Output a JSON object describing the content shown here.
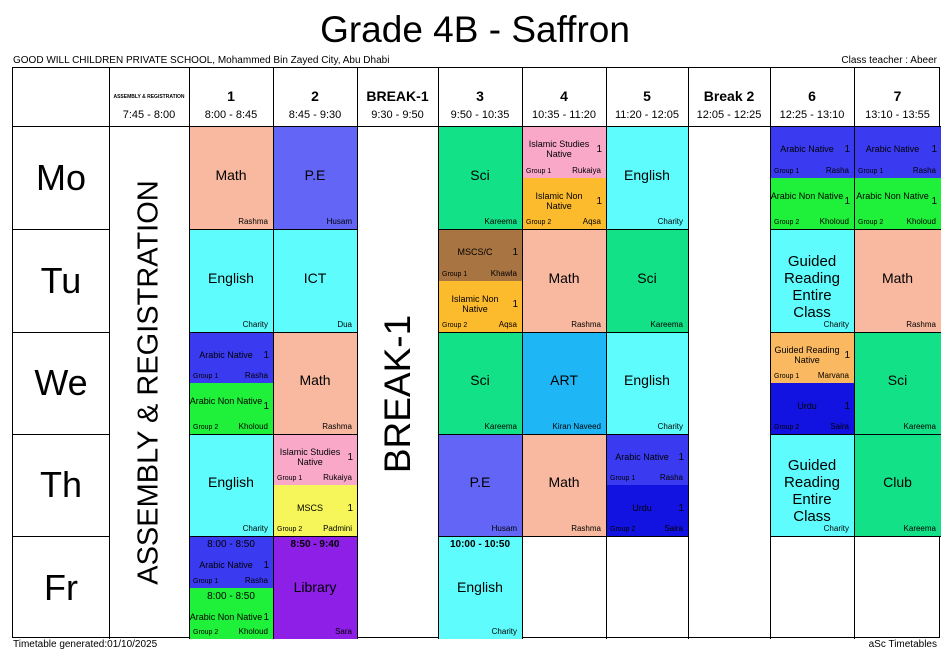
{
  "header": {
    "title": "Grade 4B - Saffron",
    "school": "GOOD WILL CHILDREN PRIVATE SCHOOL, Mohammed Bin Zayed City, Abu Dhabi",
    "teacher": "Class teacher :  Abeer"
  },
  "footer": {
    "generated": "Timetable generated:01/10/2025",
    "brand": "aSc Timetables"
  },
  "periods": [
    {
      "label": "ASSEMBLY & REGISTRATION",
      "time": "7:45 - 8:00"
    },
    {
      "label": "1",
      "time": "8:00 - 8:45"
    },
    {
      "label": "2",
      "time": "8:45 - 9:30"
    },
    {
      "label": "BREAK-1",
      "time": "9:30 - 9:50"
    },
    {
      "label": "3",
      "time": "9:50 - 10:35"
    },
    {
      "label": "4",
      "time": "10:35 - 11:20"
    },
    {
      "label": "5",
      "time": "11:20 - 12:05"
    },
    {
      "label": "Break 2",
      "time": "12:05 - 12:25"
    },
    {
      "label": "6",
      "time": "12:25 - 13:10"
    },
    {
      "label": "7",
      "time": "13:10 - 13:55"
    }
  ],
  "days": [
    "Mo",
    "Tu",
    "We",
    "Th",
    "Fr"
  ],
  "assembly": "ASSEMBLY & REGISTRATION",
  "break1": "BREAK-1",
  "lessons": {
    "mo_p1": {
      "subject": "Math",
      "teacher": "Rashma",
      "color": "#F9B9A0"
    },
    "mo_p2": {
      "subject": "P.E",
      "teacher": "Husam",
      "color": "#6365F6"
    },
    "mo_p3": {
      "subject": "Sci",
      "teacher": "Kareema",
      "color": "#13E187"
    },
    "mo_p4a": {
      "subject": "Islamic Studies Native",
      "count": "1",
      "group": "Group 1",
      "teacher": "Rukaiya",
      "color": "#F9A8C8"
    },
    "mo_p4b": {
      "subject": "Islamic Non Native",
      "count": "1",
      "group": "Group 2",
      "teacher": "Aqsa",
      "color": "#FCBA2D"
    },
    "mo_p5": {
      "subject": "English",
      "teacher": "Charity",
      "color": "#5EFCFC"
    },
    "mo_p6a": {
      "subject": "Arabic Native",
      "count": "1",
      "group": "Group 1",
      "teacher": "Rasha",
      "color": "#3A3AF1"
    },
    "mo_p6b": {
      "subject": "Arabic Non Native",
      "count": "1",
      "group": "Group 2",
      "teacher": "Kholoud",
      "color": "#1FF03A"
    },
    "mo_p7a": {
      "subject": "Arabic Native",
      "count": "1",
      "group": "Group 1",
      "teacher": "Rasha",
      "color": "#3A3AF1"
    },
    "mo_p7b": {
      "subject": "Arabic Non Native",
      "count": "1",
      "group": "Group 2",
      "teacher": "Kholoud",
      "color": "#1FF03A"
    },
    "tu_p1": {
      "subject": "English",
      "teacher": "Charity",
      "color": "#5EFCFC"
    },
    "tu_p2": {
      "subject": "ICT",
      "teacher": "Dua",
      "color": "#5EFCFC"
    },
    "tu_p3a": {
      "subject": "MSCS/C",
      "count": "1",
      "group": "Group 1",
      "teacher": "Khawla",
      "color": "#A87442"
    },
    "tu_p3b": {
      "subject": "Islamic Non Native",
      "count": "1",
      "group": "Group 2",
      "teacher": "Aqsa",
      "color": "#FCBA2D"
    },
    "tu_p4": {
      "subject": "Math",
      "teacher": "Rashma",
      "color": "#F9B9A0"
    },
    "tu_p5": {
      "subject": "Sci",
      "teacher": "Kareema",
      "color": "#13E187"
    },
    "tu_p6": {
      "subject": "Guided Reading Entire Class",
      "teacher": "Charity",
      "color": "#5EFCFC"
    },
    "tu_p7": {
      "subject": "Math",
      "teacher": "Rashma",
      "color": "#F9B9A0"
    },
    "we_p1a": {
      "subject": "Arabic Native",
      "count": "1",
      "group": "Group 1",
      "teacher": "Rasha",
      "color": "#3A3AF1"
    },
    "we_p1b": {
      "subject": "Arabic Non Native",
      "count": "1",
      "group": "Group 2",
      "teacher": "Kholoud",
      "color": "#1FF03A"
    },
    "we_p2": {
      "subject": "Math",
      "teacher": "Rashma",
      "color": "#F9B9A0"
    },
    "we_p3": {
      "subject": "Sci",
      "teacher": "Kareema",
      "color": "#13E187"
    },
    "we_p4": {
      "subject": "ART",
      "teacher": "Kiran Naveed",
      "color": "#1FB6F6"
    },
    "we_p5": {
      "subject": "English",
      "teacher": "Charity",
      "color": "#5EFCFC"
    },
    "we_p6a": {
      "subject": "Guided Reading Native",
      "count": "1",
      "group": "Group 1",
      "teacher": "Marvana",
      "color": "#FAB960"
    },
    "we_p6b": {
      "subject": "Urdu",
      "count": "1",
      "group": "Group 2",
      "teacher": "Saira",
      "color": "#1313E1"
    },
    "we_p7": {
      "subject": "Sci",
      "teacher": "Kareema",
      "color": "#13E187"
    },
    "th_p1": {
      "subject": "English",
      "teacher": "Charity",
      "color": "#5EFCFC"
    },
    "th_p2a": {
      "subject": "Islamic Studies Native",
      "count": "1",
      "group": "Group 1",
      "teacher": "Rukaiya",
      "color": "#F9A8C8"
    },
    "th_p2b": {
      "subject": "MSCS",
      "count": "1",
      "group": "Group 2",
      "teacher": "Padmini",
      "color": "#F6F65A"
    },
    "th_p3": {
      "subject": "P.E",
      "teacher": "Husam",
      "color": "#6365F6"
    },
    "th_p4": {
      "subject": "Math",
      "teacher": "Rashma",
      "color": "#F9B9A0"
    },
    "th_p5a": {
      "subject": "Arabic Native",
      "count": "1",
      "group": "Group 1",
      "teacher": "Rasha",
      "color": "#3A3AF1"
    },
    "th_p5b": {
      "subject": "Urdu",
      "count": "1",
      "group": "Group 2",
      "teacher": "Saira",
      "color": "#1313E1"
    },
    "th_p6": {
      "subject": "Guided Reading Entire Class",
      "teacher": "Charity",
      "color": "#5EFCFC"
    },
    "th_p7": {
      "subject": "Club",
      "teacher": "Kareema",
      "color": "#13E187"
    },
    "fr_p1a": {
      "time": "8:00 - 8:50",
      "subject": "Arabic Native",
      "count": "1",
      "group": "Group 1",
      "teacher": "Rasha",
      "color": "#3A3AF1"
    },
    "fr_p1b": {
      "time": "8:00 - 8:50",
      "subject": "Arabic Non Native",
      "count": "1",
      "group": "Group 2",
      "teacher": "Kholoud",
      "color": "#1FF03A"
    },
    "fr_p2": {
      "time": "8:50 - 9:40",
      "subject": "Library",
      "teacher": "Sara",
      "color": "#8E1FE6"
    },
    "fr_p3": {
      "time": "10:00 - 10:50",
      "subject": "English",
      "teacher": "Charity",
      "color": "#5EFCFC"
    }
  }
}
